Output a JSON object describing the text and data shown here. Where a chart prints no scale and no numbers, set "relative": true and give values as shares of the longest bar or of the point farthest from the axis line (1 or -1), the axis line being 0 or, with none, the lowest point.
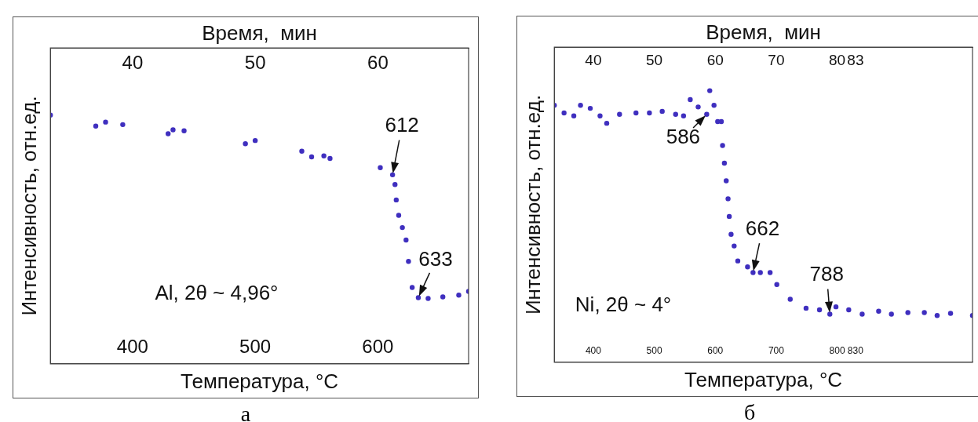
{
  "chart_data": [
    {
      "type": "scatter",
      "title": "а",
      "xlabel": "Температура, °C",
      "x2label": "Время,  мин",
      "ylabel": "Интенсивность, отн.ед.",
      "relative": true,
      "marker": "circle",
      "xlim": [
        333,
        674
      ],
      "xticks": [
        400,
        500,
        600
      ],
      "x2lim": [
        33.3,
        67.4
      ],
      "x2ticks": [
        40,
        50,
        60
      ],
      "x": [
        333,
        370,
        378,
        392,
        429,
        433,
        442,
        492,
        500,
        538,
        546,
        556,
        561,
        602,
        612,
        614,
        615,
        617,
        620,
        623,
        625,
        628,
        633,
        641,
        653,
        666,
        674
      ],
      "series": [
        {
          "color": "#3f2fbf",
          "values": [
            1.0,
            0.956,
            0.972,
            0.962,
            0.925,
            0.941,
            0.937,
            0.885,
            0.898,
            0.855,
            0.832,
            0.836,
            0.826,
            0.789,
            0.76,
            0.721,
            0.659,
            0.597,
            0.548,
            0.498,
            0.412,
            0.307,
            0.266,
            0.263,
            0.269,
            0.276,
            0.291
          ]
        }
      ],
      "annotations": [
        "Al, 2θ ~ 4,96°",
        {
          "text": "612",
          "x": 612,
          "y": 0.76
        },
        {
          "text": "633",
          "x": 633,
          "y": 0.266
        }
      ]
    },
    {
      "type": "scatter",
      "title": "б",
      "xlabel": "Температура, °C",
      "x2label": "Время,  мин",
      "ylabel": "Интенсивность, отн.ед.",
      "relative": true,
      "marker": "circle",
      "xlim": [
        336,
        1022
      ],
      "xticks": [
        400,
        500,
        600,
        700,
        800,
        830
      ],
      "x2lim": [
        33.6,
        102.2
      ],
      "x2ticks": [
        40,
        50,
        60,
        70,
        80,
        83
      ],
      "x": [
        336,
        352,
        368,
        379,
        395,
        411,
        422,
        443,
        470,
        492,
        513,
        535,
        548,
        559,
        572,
        586,
        591,
        598,
        604,
        610,
        612,
        615,
        618,
        621,
        623,
        626,
        631,
        637,
        653,
        662,
        674,
        690,
        701,
        723,
        749,
        771,
        788,
        798,
        819,
        841,
        868,
        889,
        916,
        943,
        964,
        986,
        1022
      ],
      "series": [
        {
          "color": "#3f2fbf",
          "values": [
            0.946,
            0.918,
            0.907,
            0.946,
            0.935,
            0.907,
            0.88,
            0.913,
            0.918,
            0.918,
            0.924,
            0.913,
            0.907,
            0.967,
            0.94,
            0.913,
            1.0,
            0.946,
            0.886,
            0.886,
            0.798,
            0.733,
            0.668,
            0.602,
            0.537,
            0.471,
            0.428,
            0.373,
            0.351,
            0.33,
            0.33,
            0.33,
            0.286,
            0.232,
            0.199,
            0.193,
            0.177,
            0.204,
            0.193,
            0.177,
            0.188,
            0.177,
            0.183,
            0.183,
            0.172,
            0.18,
            0.172
          ]
        }
      ],
      "annotations": [
        "Ni, 2θ ~ 4°",
        {
          "text": "586",
          "x": 586,
          "y": 0.913
        },
        {
          "text": "662",
          "x": 662,
          "y": 0.33
        },
        {
          "text": "788",
          "x": 788,
          "y": 0.177
        }
      ]
    }
  ]
}
